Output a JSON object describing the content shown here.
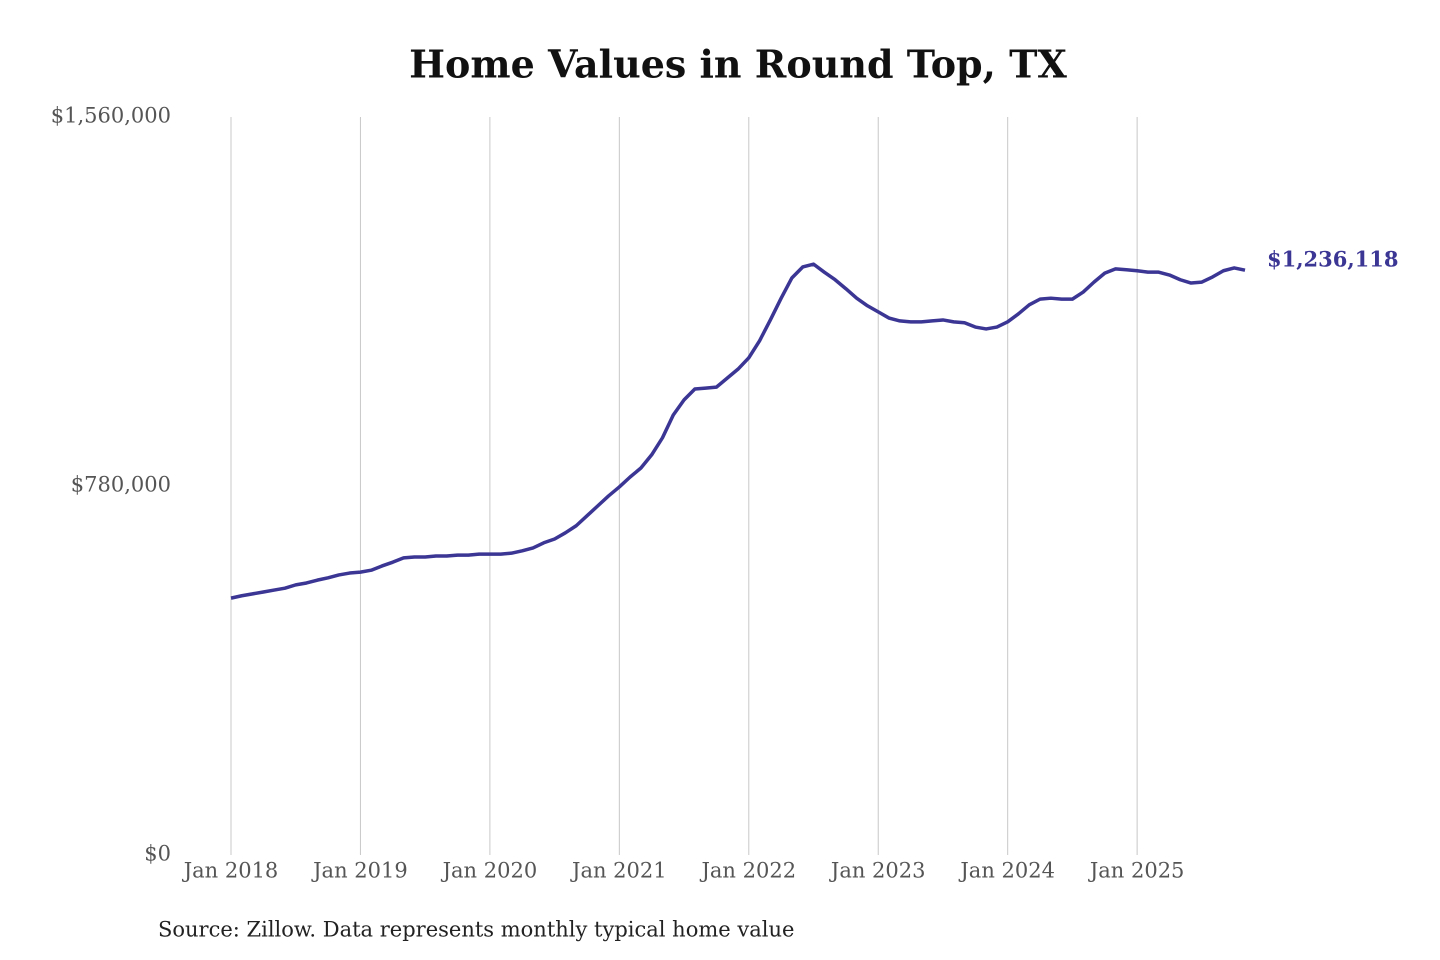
{
  "chart_data": {
    "type": "line",
    "title": "Home Values in Round Top, TX",
    "source": "Source: Zillow. Data represents monthly typical home value",
    "x": [
      "2018-01",
      "2018-02",
      "2018-03",
      "2018-04",
      "2018-05",
      "2018-06",
      "2018-07",
      "2018-08",
      "2018-09",
      "2018-10",
      "2018-11",
      "2018-12",
      "2019-01",
      "2019-02",
      "2019-03",
      "2019-04",
      "2019-05",
      "2019-06",
      "2019-07",
      "2019-08",
      "2019-09",
      "2019-10",
      "2019-11",
      "2019-12",
      "2020-01",
      "2020-02",
      "2020-03",
      "2020-04",
      "2020-05",
      "2020-06",
      "2020-07",
      "2020-08",
      "2020-09",
      "2020-10",
      "2020-11",
      "2020-12",
      "2021-01",
      "2021-02",
      "2021-03",
      "2021-04",
      "2021-05",
      "2021-06",
      "2021-07",
      "2021-08",
      "2021-09",
      "2021-10",
      "2021-11",
      "2021-12",
      "2022-01",
      "2022-02",
      "2022-03",
      "2022-04",
      "2022-05",
      "2022-06",
      "2022-07",
      "2022-08",
      "2022-09",
      "2022-10",
      "2022-11",
      "2022-12",
      "2023-01",
      "2023-02",
      "2023-03",
      "2023-04",
      "2023-05",
      "2023-06",
      "2023-07",
      "2023-08",
      "2023-09",
      "2023-10",
      "2023-11",
      "2023-12",
      "2024-01",
      "2024-02",
      "2024-03",
      "2024-04",
      "2024-05",
      "2024-06",
      "2024-07",
      "2024-08",
      "2024-09",
      "2024-10",
      "2024-11",
      "2024-12",
      "2025-01",
      "2025-02",
      "2025-03",
      "2025-04",
      "2025-05",
      "2025-06",
      "2025-07",
      "2025-08",
      "2025-09",
      "2025-10",
      "2025-11"
    ],
    "series": [
      {
        "name": "Typical home value",
        "color": "#3b3594",
        "values": [
          543000,
          548000,
          552000,
          556000,
          560000,
          564000,
          571000,
          575000,
          581000,
          586000,
          592000,
          596000,
          598000,
          602000,
          611000,
          619000,
          628000,
          630000,
          630000,
          632000,
          632000,
          634000,
          634000,
          636000,
          636000,
          636000,
          638000,
          643000,
          649000,
          660000,
          668000,
          681000,
          696000,
          717000,
          738000,
          759000,
          778000,
          799000,
          818000,
          846000,
          882000,
          930000,
          962000,
          985000,
          987000,
          989000,
          1008000,
          1027000,
          1051000,
          1087000,
          1131000,
          1177000,
          1220000,
          1243000,
          1249000,
          1232000,
          1216000,
          1197000,
          1177000,
          1161000,
          1148000,
          1135000,
          1129000,
          1127000,
          1127000,
          1129000,
          1131000,
          1127000,
          1125000,
          1116000,
          1112000,
          1116000,
          1127000,
          1144000,
          1163000,
          1175000,
          1177000,
          1175000,
          1175000,
          1190000,
          1211000,
          1230000,
          1239000,
          1237000,
          1235000,
          1232000,
          1232000,
          1226000,
          1216000,
          1209000,
          1211000,
          1222000,
          1235000,
          1241000,
          1236118
        ],
        "value_labels": [
          null,
          null,
          null,
          null,
          null,
          null,
          null,
          null,
          null,
          null,
          null,
          null,
          null,
          null,
          null,
          null,
          null,
          null,
          null,
          null,
          null,
          null,
          null,
          null,
          null,
          null,
          null,
          null,
          null,
          null,
          null,
          null,
          null,
          null,
          null,
          null,
          null,
          null,
          null,
          null,
          null,
          null,
          null,
          null,
          null,
          null,
          null,
          null,
          null,
          null,
          null,
          null,
          null,
          null,
          null,
          null,
          null,
          null,
          null,
          null,
          null,
          null,
          null,
          null,
          null,
          null,
          null,
          null,
          null,
          null,
          null,
          null,
          null,
          null,
          null,
          null,
          null,
          null,
          null,
          null,
          null,
          null,
          null,
          null,
          null,
          null,
          null,
          null,
          null,
          null,
          null,
          null,
          null,
          null,
          "$1,236,118"
        ]
      }
    ],
    "xticks": [
      {
        "value": "2018-01",
        "label": "Jan 2018"
      },
      {
        "value": "2019-01",
        "label": "Jan 2019"
      },
      {
        "value": "2020-01",
        "label": "Jan 2020"
      },
      {
        "value": "2021-01",
        "label": "Jan 2021"
      },
      {
        "value": "2022-01",
        "label": "Jan 2022"
      },
      {
        "value": "2023-01",
        "label": "Jan 2023"
      },
      {
        "value": "2024-01",
        "label": "Jan 2024"
      },
      {
        "value": "2025-01",
        "label": "Jan 2025"
      }
    ],
    "ylim": [
      0,
      1560000
    ],
    "yticks": [
      {
        "value": 0,
        "label": "$0"
      },
      {
        "value": 780000,
        "label": "$780,000"
      },
      {
        "value": 1560000,
        "label": "$1,560,000"
      }
    ],
    "grid": "x"
  }
}
